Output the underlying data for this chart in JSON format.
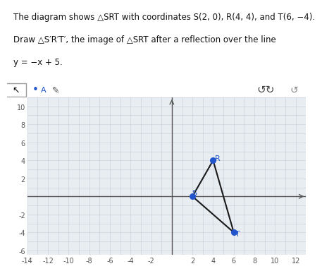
{
  "title_lines": [
    "The diagram shows △SRT with coordinates S(2, 0), R(4, 4), and T(6, −4).",
    "Draw △S′R′T′, the image of △SRT after a reflection over the line",
    "y = −x + 5."
  ],
  "S": [
    2,
    0
  ],
  "R": [
    4,
    4
  ],
  "T": [
    6,
    -4
  ],
  "triangle_color": "#1a1a1a",
  "dot_color": "#2255cc",
  "label_color": "#2255cc",
  "xmin": -14,
  "xmax": 13,
  "ymin": -6.5,
  "ymax": 11,
  "xticks": [
    -14,
    -12,
    -10,
    -8,
    -6,
    -4,
    -2,
    2,
    4,
    6,
    8,
    10,
    12
  ],
  "yticks": [
    -6,
    -4,
    -2,
    2,
    4,
    6,
    8,
    10
  ],
  "grid_color": "#c5ccd8",
  "bg_color": "#e8edf2",
  "axis_color": "#555555",
  "text_color": "#111111",
  "title_fontsize": 8.5,
  "tick_fontsize": 7.0
}
